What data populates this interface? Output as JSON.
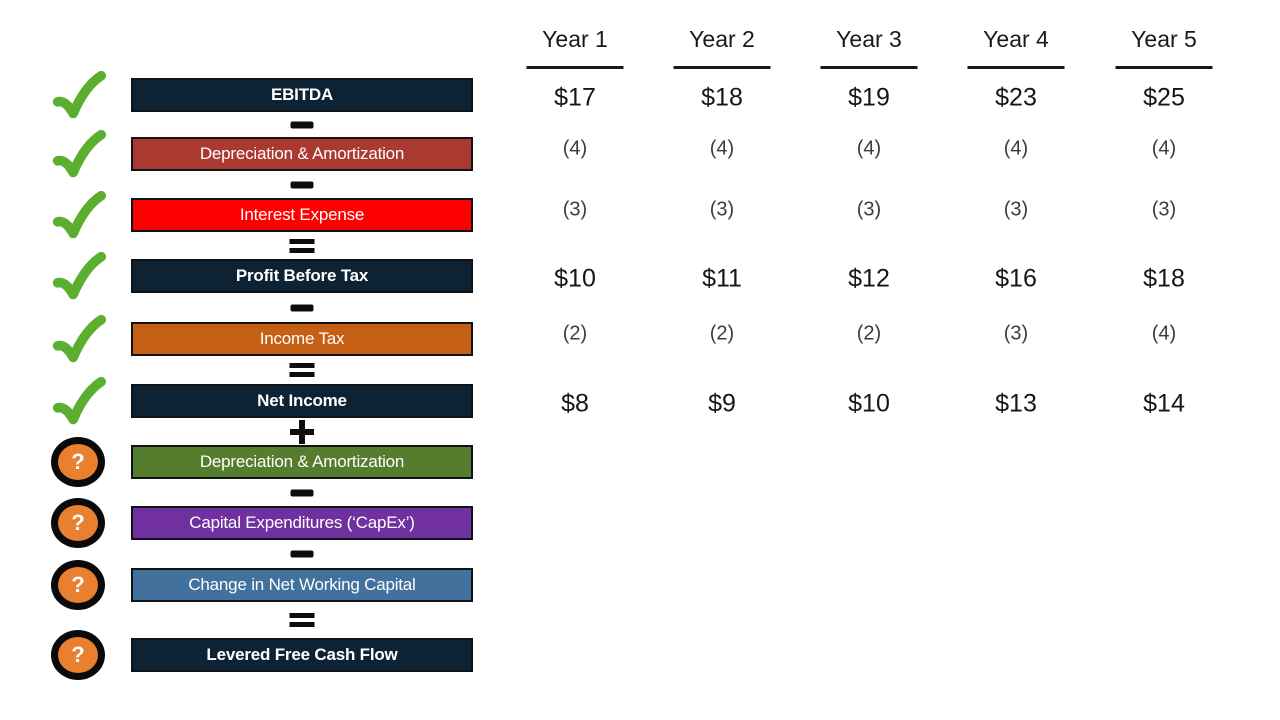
{
  "table": {
    "columns": [
      "Year 1",
      "Year 2",
      "Year 3",
      "Year 4",
      "Year 5"
    ]
  },
  "rows": [
    {
      "label": "EBITDA",
      "color": "#0D2233",
      "bold": true,
      "operator_before": null,
      "marker": "check",
      "values": [
        "$17",
        "$18",
        "$19",
        "$23",
        "$25"
      ]
    },
    {
      "label": "Depreciation & Amortization",
      "color": "#A93931",
      "bold": false,
      "operator_before": "minus",
      "marker": "check",
      "values": [
        "(4)",
        "(4)",
        "(4)",
        "(4)",
        "(4)"
      ]
    },
    {
      "label": "Interest Expense",
      "color": "#FF0000",
      "bold": false,
      "operator_before": "minus",
      "marker": "check",
      "values": [
        "(3)",
        "(3)",
        "(3)",
        "(3)",
        "(3)"
      ]
    },
    {
      "label": "Profit Before Tax",
      "color": "#0D2233",
      "bold": true,
      "operator_before": "equals",
      "marker": "check",
      "values": [
        "$10",
        "$11",
        "$12",
        "$16",
        "$18"
      ]
    },
    {
      "label": "Income Tax",
      "color": "#C55F13",
      "bold": false,
      "operator_before": "minus",
      "marker": "check",
      "values": [
        "(2)",
        "(2)",
        "(2)",
        "(3)",
        "(4)"
      ]
    },
    {
      "label": "Net Income",
      "color": "#0D2233",
      "bold": true,
      "operator_before": "equals",
      "marker": "check",
      "values": [
        "$8",
        "$9",
        "$10",
        "$13",
        "$14"
      ]
    },
    {
      "label": "Depreciation & Amortization",
      "color": "#567D2E",
      "bold": false,
      "operator_before": "plus",
      "marker": "question",
      "values": []
    },
    {
      "label": "Capital Expenditures (‘CapEx’)",
      "color": "#7030A0",
      "bold": false,
      "operator_before": "minus",
      "marker": "question",
      "values": []
    },
    {
      "label": "Change in Net Working Capital",
      "color": "#41719C",
      "bold": false,
      "operator_before": "minus",
      "marker": "question",
      "values": []
    },
    {
      "label": "Levered Free Cash Flow",
      "color": "#0D2233",
      "bold": true,
      "operator_before": "equals",
      "marker": "question",
      "values": []
    }
  ],
  "icons": {
    "question_glyph": "?"
  },
  "colors": {
    "check_green": "#5CAE2F",
    "question_orange": "#E8802F",
    "marker_ring": "#0A0A0A",
    "operator_black": "#0D0D0D",
    "header_text": "#1A1A1A",
    "header_rule": "#1A1A1A",
    "value_dollar": "#161616",
    "value_paren": "#3C3C3C"
  }
}
